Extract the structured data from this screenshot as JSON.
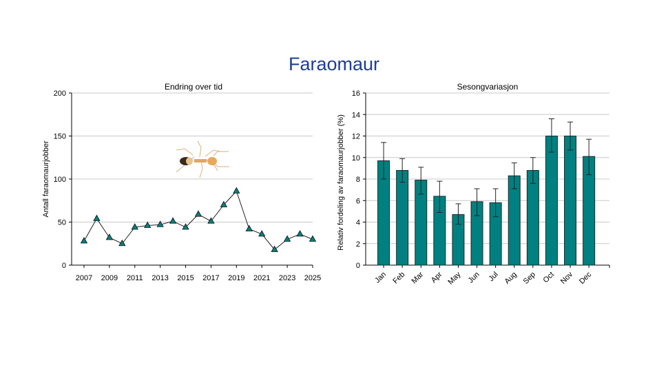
{
  "page": {
    "title": "Faraomaur"
  },
  "chart_data": [
    {
      "type": "line",
      "title": "Endring over tid",
      "xlabel": "",
      "ylabel": "Antall faraomaurjobber",
      "ylim": [
        0,
        200
      ],
      "yticks": [
        0,
        50,
        100,
        150,
        200
      ],
      "xticks": [
        2007,
        2009,
        2011,
        2013,
        2015,
        2017,
        2019,
        2021,
        2023,
        2025
      ],
      "x": [
        2007,
        2008,
        2009,
        2010,
        2011,
        2012,
        2013,
        2014,
        2015,
        2016,
        2017,
        2018,
        2019,
        2020,
        2021,
        2022,
        2023,
        2024,
        2025
      ],
      "values": [
        28,
        54,
        32,
        25,
        44,
        46,
        47,
        51,
        44,
        59,
        51,
        70,
        86,
        42,
        36,
        18,
        30,
        36,
        30
      ],
      "marker": "triangle",
      "marker_color": "#008080",
      "grid": true,
      "image": "pharaoh-ant"
    },
    {
      "type": "bar",
      "title": "Sesongvariasjon",
      "xlabel": "",
      "ylabel": "Relativ fordeling av faraomaurjobber (%)",
      "ylim": [
        0,
        16
      ],
      "yticks": [
        0,
        2,
        4,
        6,
        8,
        10,
        12,
        14,
        16
      ],
      "categories": [
        "Jan",
        "Feb",
        "Mar",
        "Apr",
        "May",
        "Jun",
        "Jul",
        "Aug",
        "Sep",
        "Oct",
        "Nov",
        "Dec"
      ],
      "values": [
        9.7,
        8.8,
        7.9,
        6.4,
        4.7,
        5.9,
        5.8,
        8.3,
        8.8,
        12.0,
        12.0,
        10.1
      ],
      "error_low": [
        8.0,
        7.7,
        6.6,
        4.9,
        3.8,
        4.6,
        4.5,
        7.1,
        7.6,
        10.5,
        10.7,
        8.4
      ],
      "error_high": [
        11.4,
        9.9,
        9.1,
        7.8,
        5.7,
        7.1,
        7.1,
        9.5,
        10.0,
        13.6,
        13.3,
        11.7
      ],
      "bar_color": "#008080",
      "grid": true
    }
  ]
}
